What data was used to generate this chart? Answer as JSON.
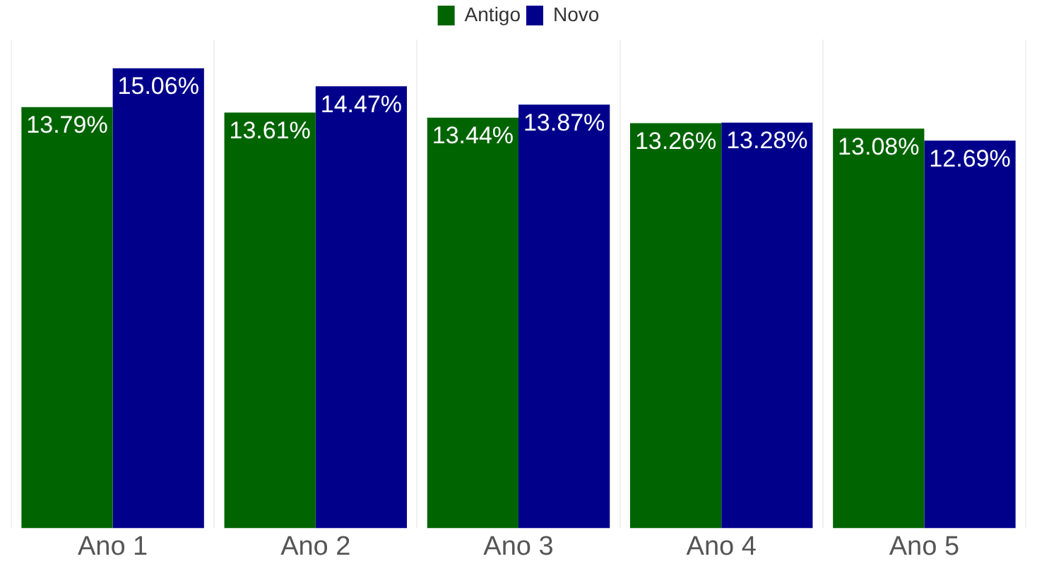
{
  "chart_data": {
    "type": "bar",
    "categories": [
      "Ano 1",
      "Ano 2",
      "Ano 3",
      "Ano 4",
      "Ano 5"
    ],
    "series": [
      {
        "name": "Antigo",
        "color": "#006400",
        "values": [
          13.79,
          13.61,
          13.44,
          13.26,
          13.08
        ],
        "value_labels": [
          "13.79%",
          "13.61%",
          "13.44%",
          "13.26%",
          "13.08%"
        ]
      },
      {
        "name": "Novo",
        "color": "#00008b",
        "values": [
          15.06,
          14.47,
          13.87,
          13.28,
          12.69
        ],
        "value_labels": [
          "15.06%",
          "14.47%",
          "13.87%",
          "13.28%",
          "12.69%"
        ]
      }
    ],
    "legend": "top",
    "grid": "x"
  }
}
